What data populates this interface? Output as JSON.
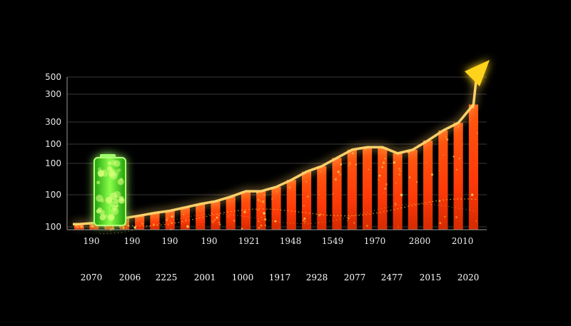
{
  "chart_data": {
    "type": "bar",
    "y_tick_labels": [
      "500",
      "300",
      "300",
      "100",
      "100",
      "100",
      "100"
    ],
    "x_tick_labels_top": [
      "190",
      "190",
      "190",
      "190",
      "1921",
      "1948",
      "1549",
      "1970",
      "2800",
      "2010"
    ],
    "x_tick_labels_bottom": [
      "2070",
      "2006",
      "2225",
      "2001",
      "1000",
      "1917",
      "2928",
      "2077",
      "2477",
      "2015",
      "2020"
    ],
    "ylim": [
      0,
      500
    ],
    "grid": true,
    "trend_line": "up-arrow",
    "values": [
      18,
      22,
      26,
      38,
      46,
      55,
      62,
      73,
      84,
      93,
      108,
      126,
      126,
      140,
      163,
      190,
      208,
      235,
      262,
      270,
      270,
      250,
      262,
      292,
      325,
      350,
      410
    ],
    "battery_icon": "battery-icon",
    "colors": {
      "bar": "#ff4a12",
      "bar_glow": "#ff8a1a",
      "trend": "#ffd06a",
      "arrow": "#ffd21e",
      "battery": "#3cff2a",
      "grid": "#4a4a4a",
      "background": "#000000"
    }
  }
}
